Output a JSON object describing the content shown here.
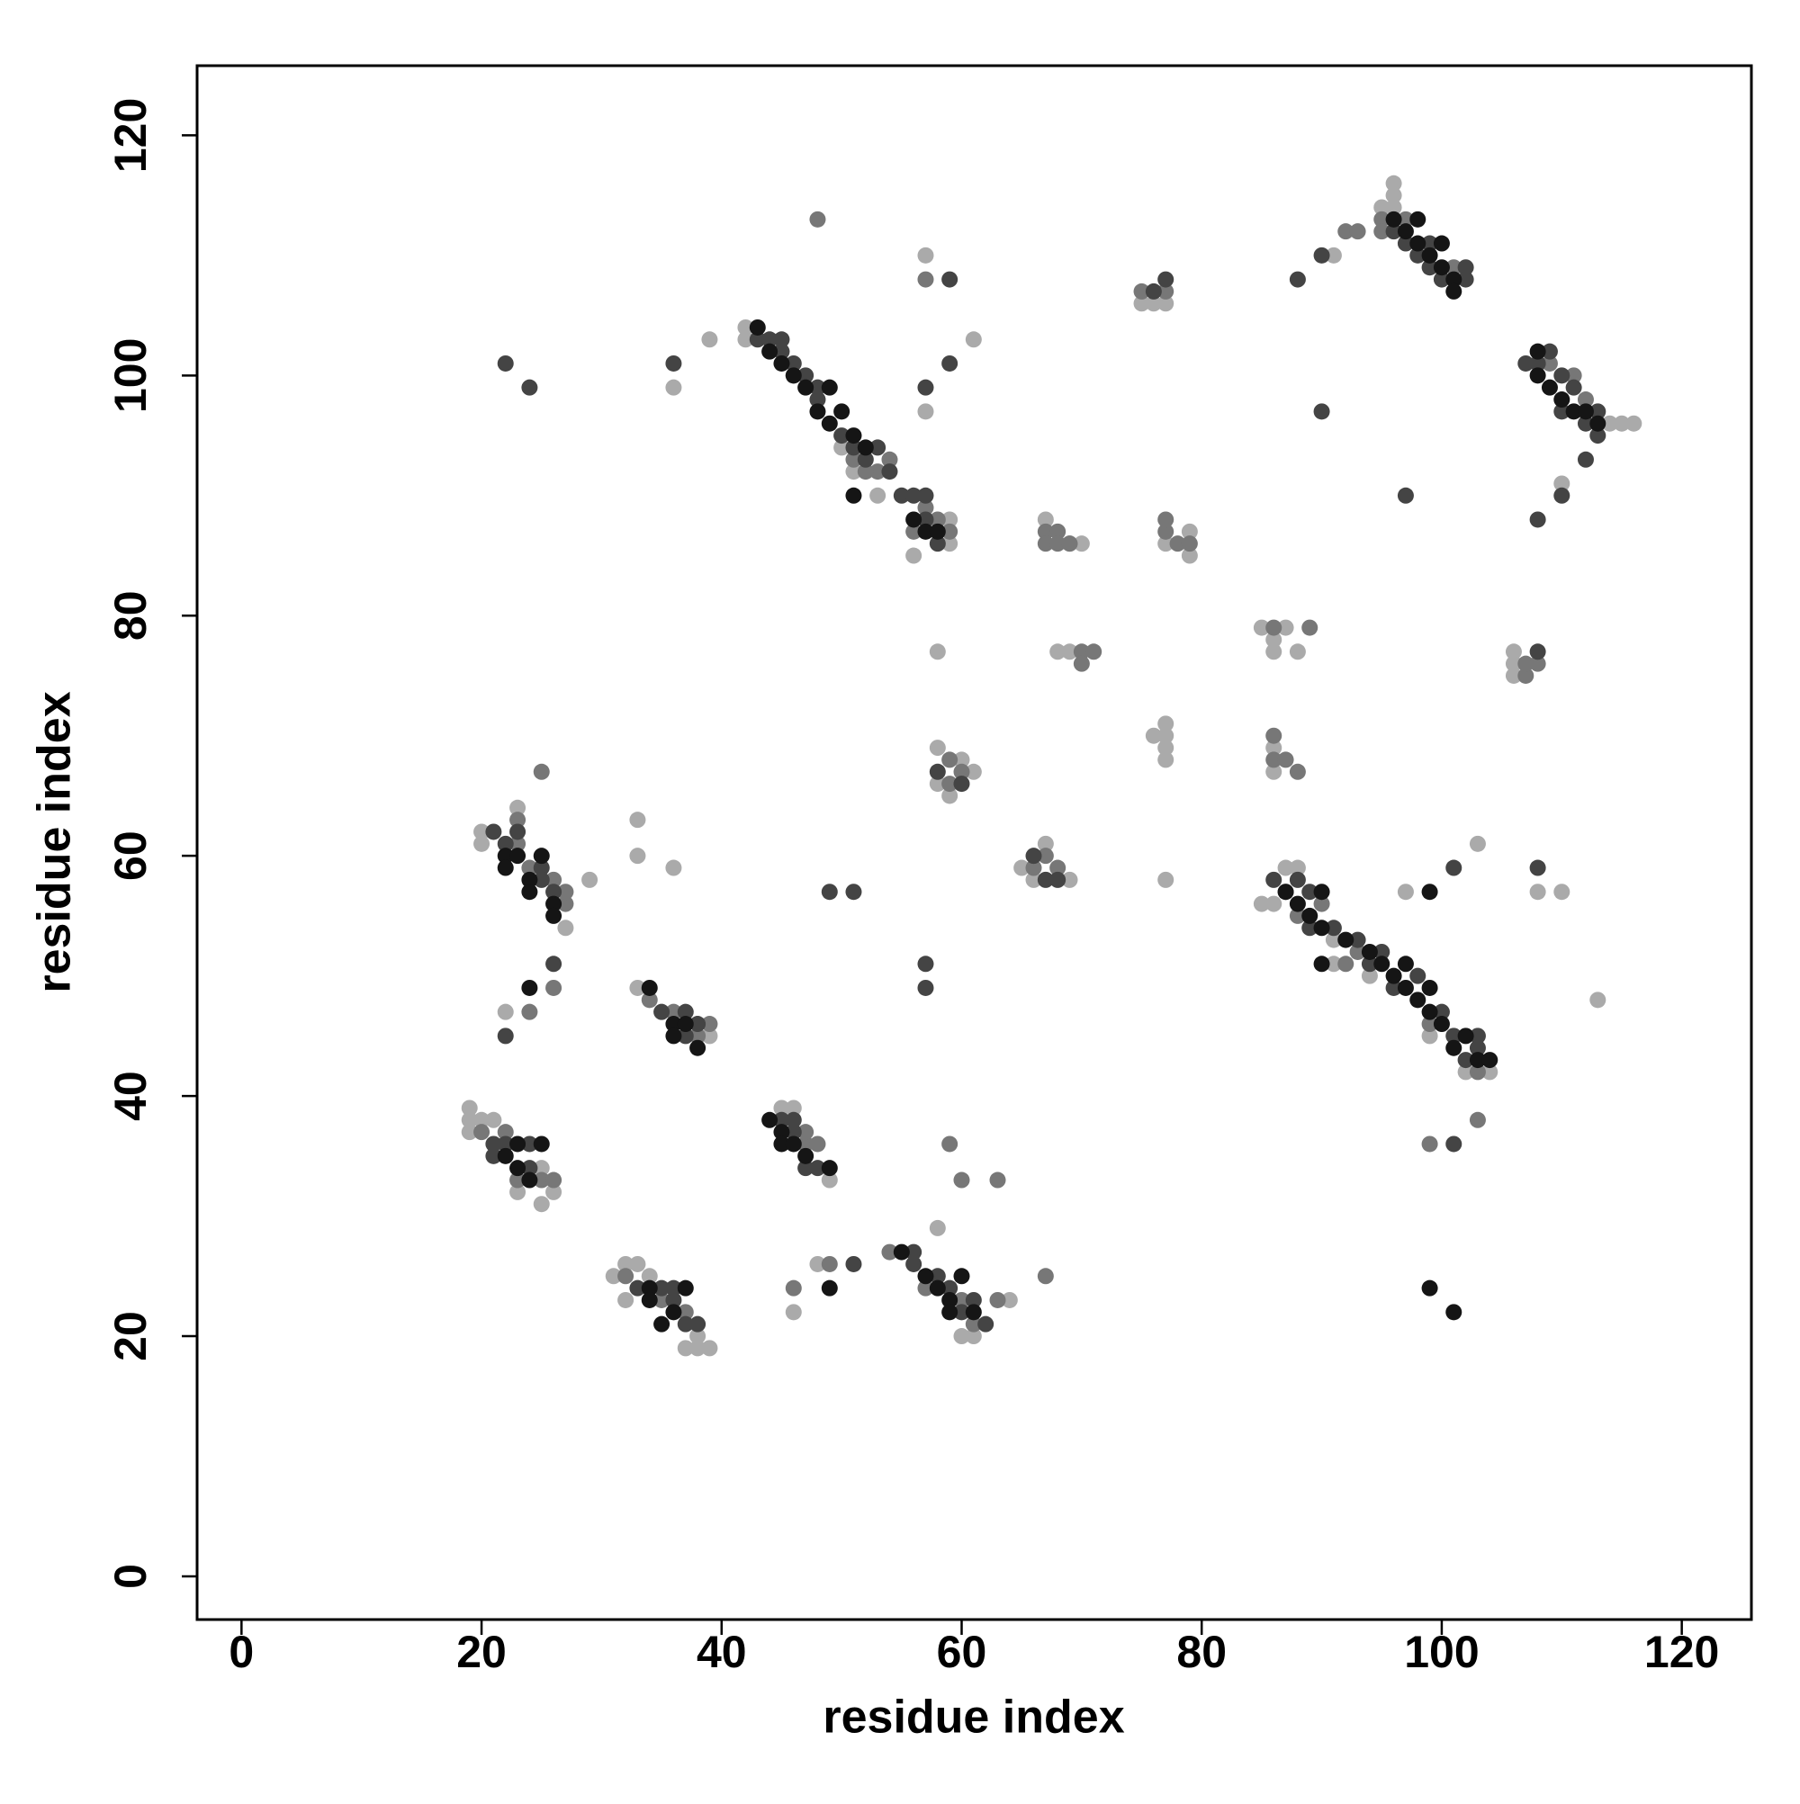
{
  "chart_data": {
    "type": "scatter",
    "x_label": "residue index",
    "y_label": "residue index",
    "xlim": [
      -3.7,
      125.8
    ],
    "ylim": [
      -3.6,
      125.8
    ],
    "xticks": [
      0,
      20,
      40,
      60,
      80,
      100,
      120
    ],
    "yticks": [
      0,
      20,
      40,
      60,
      80,
      100,
      120
    ],
    "series": [
      {
        "color": "#aaaaaa",
        "x": [
          42,
          42,
          50,
          51,
          53,
          56,
          59,
          59,
          57,
          57,
          61,
          39,
          36,
          96,
          96,
          96,
          95,
          91,
          114,
          115,
          116,
          110,
          85,
          86,
          87,
          88,
          91,
          91,
          94,
          99,
          102,
          104,
          97,
          103,
          113,
          110,
          108,
          20,
          20,
          23,
          27,
          29,
          33,
          33,
          36,
          22,
          33,
          39,
          19,
          19,
          19,
          20,
          21,
          23,
          25,
          25,
          26,
          45,
          46,
          49,
          48,
          46,
          31,
          32,
          33,
          32,
          34,
          37,
          38,
          39,
          38,
          58,
          60,
          61,
          64,
          58,
          58,
          59,
          61,
          60,
          65,
          66,
          67,
          69,
          67,
          69,
          70,
          77,
          79,
          79,
          75,
          76,
          77,
          77,
          77,
          76,
          77,
          77,
          85,
          86,
          86,
          87,
          88,
          86,
          86,
          106,
          106,
          106,
          68,
          69,
          58,
          77
        ],
        "values": [
          104,
          103,
          94,
          92,
          90,
          85,
          88,
          86,
          97,
          110,
          103,
          103,
          99,
          116,
          115,
          114,
          114,
          110,
          96,
          96,
          96,
          91,
          56,
          56,
          59,
          59,
          53,
          51,
          50,
          45,
          42,
          42,
          57,
          61,
          48,
          57,
          57,
          62,
          61,
          64,
          54,
          58,
          63,
          60,
          59,
          47,
          49,
          45,
          39,
          38,
          37,
          38,
          38,
          32,
          34,
          31,
          32,
          39,
          39,
          33,
          26,
          22,
          25,
          26,
          26,
          23,
          25,
          19,
          19,
          19,
          20,
          29,
          20,
          20,
          23,
          69,
          66,
          65,
          67,
          68,
          59,
          58,
          61,
          58,
          88,
          86,
          86,
          86,
          87,
          85,
          106,
          106,
          106,
          70,
          71,
          70,
          69,
          68,
          79,
          78,
          77,
          79,
          77,
          67,
          69,
          77,
          76,
          75,
          77,
          77,
          77,
          58
        ]
      },
      {
        "color": "#777777",
        "x": [
          57,
          56,
          53,
          54,
          52,
          51,
          58,
          59,
          46,
          97,
          95,
          95,
          101,
          111,
          112,
          109,
          92,
          87,
          88,
          90,
          93,
          92,
          99,
          103,
          23,
          23,
          24,
          26,
          27,
          27,
          34,
          36,
          38,
          39,
          20,
          22,
          23,
          25,
          26,
          47,
          48,
          47,
          35,
          32,
          37,
          54,
          57,
          60,
          61,
          63,
          67,
          66,
          67,
          68,
          59,
          59,
          60,
          67,
          68,
          67,
          68,
          69,
          77,
          77,
          78,
          79,
          75,
          77,
          86,
          87,
          88,
          86,
          107,
          107,
          108,
          24,
          26,
          25,
          48,
          57,
          93,
          89,
          86,
          70,
          70,
          71,
          99,
          59,
          60,
          63,
          49,
          46,
          103
        ],
        "values": [
          89,
          87,
          92,
          93,
          92,
          93,
          88,
          87,
          100,
          113,
          113,
          112,
          109,
          100,
          98,
          101,
          112,
          57,
          55,
          56,
          52,
          51,
          46,
          42,
          61,
          63,
          59,
          58,
          56,
          57,
          48,
          47,
          45,
          46,
          37,
          37,
          33,
          33,
          33,
          36,
          36,
          37,
          23,
          25,
          22,
          27,
          24,
          23,
          21,
          23,
          25,
          59,
          60,
          59,
          66,
          68,
          67,
          87,
          87,
          86,
          86,
          86,
          87,
          88,
          86,
          86,
          107,
          107,
          68,
          68,
          67,
          70,
          75,
          76,
          76,
          47,
          49,
          67,
          113,
          108,
          112,
          79,
          79,
          77,
          76,
          77,
          36,
          36,
          33,
          33,
          26,
          24,
          38
        ]
      },
      {
        "color": "#444444",
        "x": [
          43,
          44,
          45,
          45,
          46,
          47,
          48,
          48,
          50,
          51,
          52,
          53,
          54,
          55,
          56,
          57,
          57,
          58,
          22,
          24,
          36,
          57,
          59,
          59,
          97,
          98,
          99,
          99,
          100,
          102,
          102,
          96,
          107,
          108,
          109,
          110,
          110,
          111,
          112,
          113,
          113,
          88,
          86,
          89,
          89,
          91,
          93,
          94,
          95,
          96,
          98,
          100,
          101,
          102,
          103,
          103,
          21,
          22,
          23,
          25,
          25,
          26,
          35,
          37,
          37,
          38,
          21,
          21,
          22,
          24,
          24,
          45,
          46,
          46,
          47,
          48,
          33,
          35,
          36,
          36,
          37,
          38,
          56,
          56,
          58,
          59,
          60,
          61,
          62,
          57,
          57,
          49,
          51,
          60,
          58,
          66,
          67,
          68,
          90,
          97,
          108,
          108,
          110,
          112,
          108,
          101,
          22,
          101,
          51,
          26,
          90,
          88,
          77,
          76
        ],
        "values": [
          103,
          103,
          103,
          102,
          101,
          100,
          98,
          99,
          95,
          94,
          93,
          94,
          92,
          90,
          90,
          90,
          88,
          86,
          101,
          99,
          101,
          99,
          101,
          108,
          111,
          110,
          111,
          109,
          108,
          109,
          108,
          112,
          101,
          101,
          102,
          100,
          97,
          99,
          96,
          97,
          95,
          58,
          58,
          57,
          54,
          54,
          53,
          51,
          52,
          49,
          50,
          47,
          45,
          43,
          45,
          44,
          62,
          61,
          62,
          59,
          58,
          57,
          47,
          47,
          45,
          46,
          36,
          35,
          36,
          34,
          36,
          38,
          38,
          37,
          34,
          34,
          24,
          24,
          24,
          23,
          21,
          21,
          27,
          26,
          25,
          24,
          22,
          23,
          21,
          51,
          49,
          57,
          57,
          66,
          67,
          60,
          58,
          58,
          97,
          90,
          59,
          88,
          90,
          93,
          77,
          36,
          45,
          59,
          26,
          51,
          110,
          108,
          108,
          107
        ]
      },
      {
        "color": "#151515",
        "x": [
          43,
          44,
          45,
          46,
          47,
          48,
          49,
          49,
          50,
          51,
          52,
          56,
          57,
          58,
          51,
          96,
          97,
          98,
          98,
          99,
          100,
          100,
          101,
          101,
          108,
          108,
          109,
          110,
          111,
          112,
          113,
          87,
          88,
          89,
          90,
          90,
          92,
          94,
          95,
          96,
          97,
          97,
          98,
          99,
          99,
          100,
          101,
          102,
          103,
          104,
          22,
          22,
          23,
          24,
          24,
          25,
          26,
          26,
          34,
          36,
          36,
          37,
          38,
          22,
          23,
          23,
          24,
          25,
          44,
          45,
          45,
          46,
          47,
          49,
          34,
          34,
          35,
          36,
          37,
          55,
          57,
          58,
          59,
          59,
          60,
          61,
          24,
          49,
          99,
          101,
          99,
          90
        ],
        "values": [
          104,
          102,
          101,
          100,
          99,
          97,
          99,
          96,
          97,
          95,
          94,
          88,
          87,
          87,
          90,
          113,
          112,
          113,
          111,
          110,
          109,
          111,
          108,
          107,
          102,
          100,
          99,
          98,
          97,
          97,
          96,
          57,
          56,
          55,
          57,
          54,
          53,
          52,
          51,
          50,
          51,
          49,
          48,
          49,
          47,
          46,
          44,
          45,
          43,
          43,
          60,
          59,
          60,
          58,
          57,
          60,
          56,
          55,
          49,
          46,
          45,
          46,
          44,
          35,
          36,
          34,
          33,
          36,
          38,
          37,
          36,
          36,
          35,
          34,
          24,
          23,
          21,
          22,
          24,
          27,
          25,
          24,
          23,
          22,
          25,
          22,
          49,
          24,
          24,
          22,
          57,
          51
        ]
      }
    ]
  }
}
